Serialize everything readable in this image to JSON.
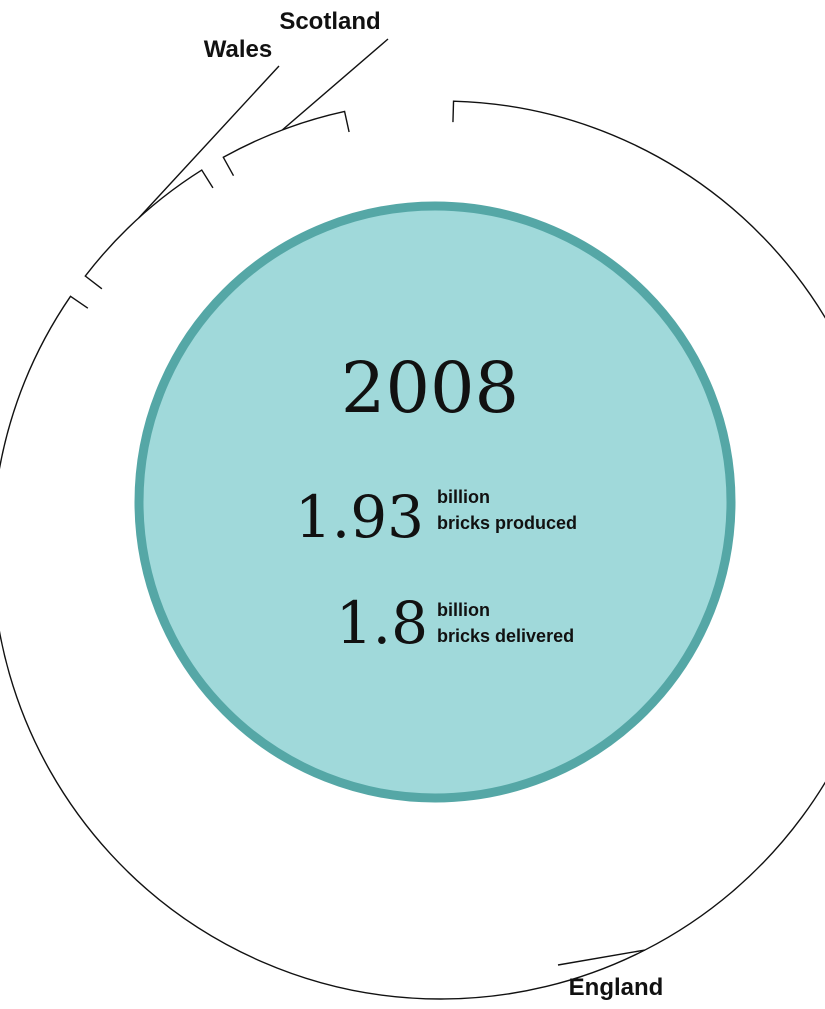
{
  "chart_data": {
    "type": "pie",
    "title": "",
    "year": "2008",
    "slices": [
      {
        "label": "England",
        "share": 0.85
      },
      {
        "label": "Wales",
        "share": 0.065
      },
      {
        "label": "Scotland",
        "share": 0.055
      }
    ],
    "stats": [
      {
        "value": "1.93",
        "unit": "billion",
        "description": "bricks produced"
      },
      {
        "value": "1.8",
        "unit": "billion",
        "description": "bricks delivered"
      }
    ],
    "colors": {
      "inner_fill": "#a0d9da",
      "inner_border": "#55a7a6",
      "ring_line": "#111111"
    }
  }
}
